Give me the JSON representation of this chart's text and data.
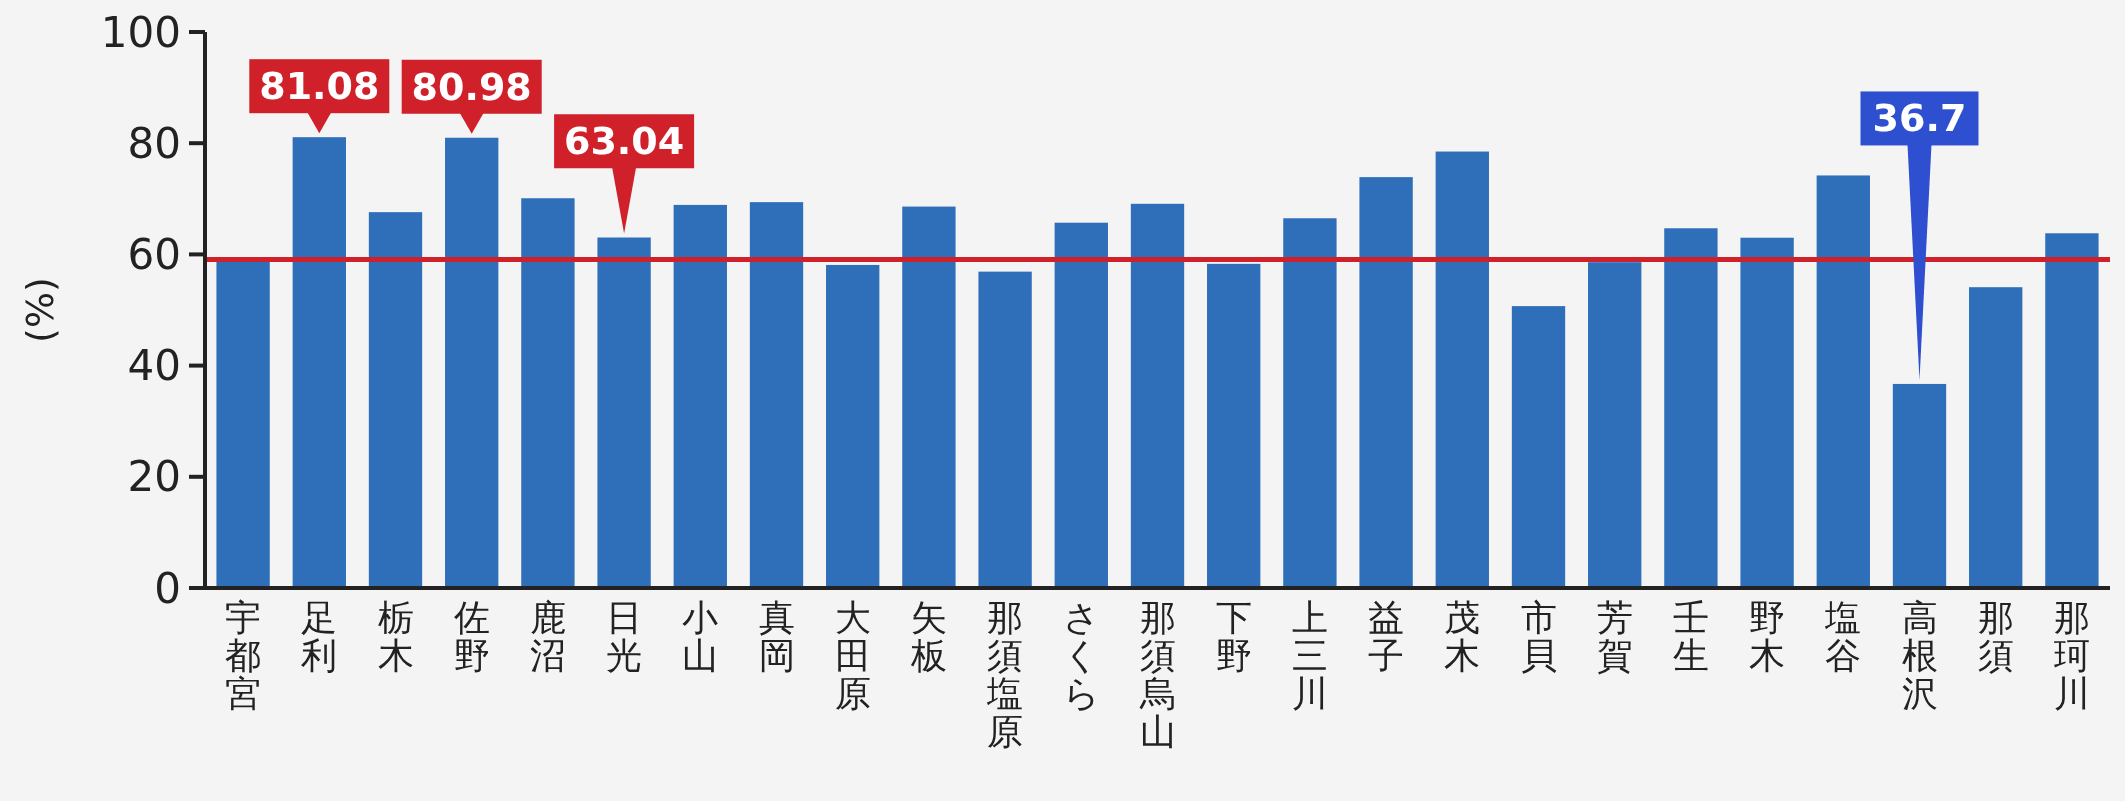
{
  "chart_data": {
    "type": "bar",
    "ylabel": "(%)",
    "categories": [
      "宇都宮",
      "足利",
      "栃木",
      "佐野",
      "鹿沼",
      "日光",
      "小山",
      "真岡",
      "大田原",
      "矢板",
      "那須塩原",
      "さくら",
      "那須烏山",
      "下野",
      "上三川",
      "益子",
      "茂木",
      "市貝",
      "芳賀",
      "壬生",
      "野木",
      "塩谷",
      "高根沢",
      "那須",
      "那珂川"
    ],
    "values": [
      58.9,
      81.08,
      67.6,
      80.98,
      70.1,
      63.04,
      68.9,
      69.4,
      58.1,
      68.6,
      56.9,
      65.7,
      69.1,
      58.3,
      66.5,
      73.9,
      78.5,
      50.7,
      58.6,
      64.7,
      63.0,
      74.2,
      36.7,
      54.1,
      63.8
    ],
    "value_labels": [
      null,
      "81.08",
      null,
      "80.98",
      null,
      "63.04",
      null,
      null,
      null,
      null,
      null,
      null,
      null,
      null,
      null,
      null,
      null,
      null,
      null,
      null,
      null,
      null,
      "36.7",
      null,
      null
    ],
    "color": "#2f6fba",
    "ylim": [
      0,
      100
    ],
    "yticks": [
      0,
      20,
      40,
      60,
      80,
      100
    ],
    "ref_lines": [
      {
        "axis": "y",
        "value": 59.1,
        "color": "#d0202a"
      }
    ],
    "grid": false
  }
}
